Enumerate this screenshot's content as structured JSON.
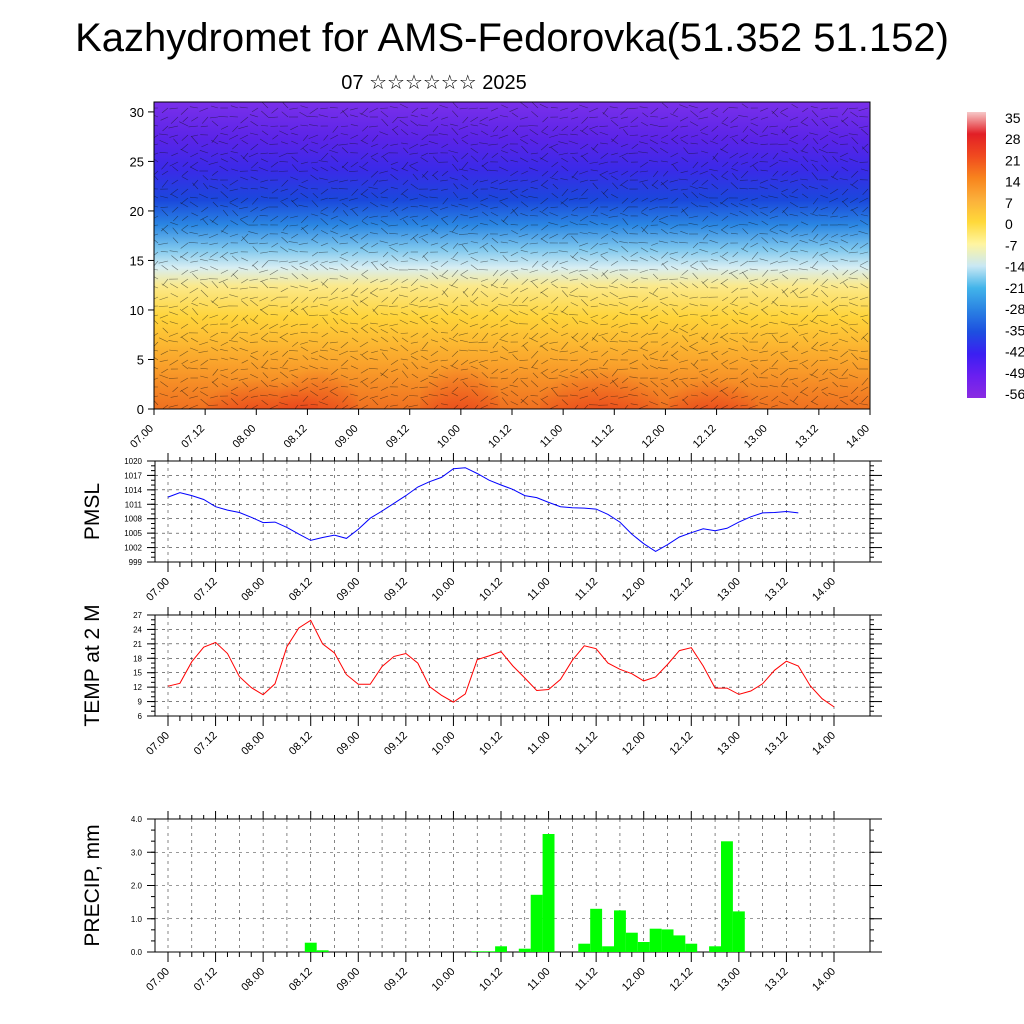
{
  "title": "Kazhydromet for AMS-Fedorovka(51.352 51.152)",
  "subtitle": "07 ☆☆☆☆☆☆ 2025",
  "time_labels": [
    "07.00",
    "07.12",
    "08.00",
    "08.12",
    "09.00",
    "09.12",
    "10.00",
    "10.12",
    "11.00",
    "11.12",
    "12.00",
    "12.12",
    "13.00",
    "13.12",
    "14.00"
  ],
  "colorbar": {
    "labels": [
      "35",
      "28",
      "21",
      "14",
      "7",
      "0",
      "-7",
      "-14",
      "-21",
      "-28",
      "-35",
      "-42",
      "-49",
      "-56"
    ],
    "colors": [
      "#f6c8c8",
      "#e21f26",
      "#f04a1f",
      "#f8841d",
      "#fbb03b",
      "#ffd93a",
      "#fff5a0",
      "#c9e8f4",
      "#42b4ea",
      "#2a82e3",
      "#1d4fe0",
      "#3b1ff2",
      "#6a1ff0",
      "#8a2be2"
    ]
  },
  "chart_data": [
    {
      "type": "heatmap",
      "name": "cross-section",
      "ylabel": "",
      "ylim": [
        0,
        31
      ],
      "yticks": [
        "0",
        "5",
        "10",
        "15",
        "20",
        "25",
        "30"
      ],
      "x": [
        "07.00",
        "07.12",
        "08.00",
        "08.12",
        "09.00",
        "09.12",
        "10.00",
        "10.12",
        "11.00",
        "11.12",
        "12.00",
        "12.12",
        "13.00",
        "13.12",
        "14.00"
      ],
      "description_levels": "temperature shading with wind barbs"
    },
    {
      "type": "line",
      "ylabel": "PMSL",
      "ylim": [
        999,
        1020
      ],
      "yticks": [
        "999",
        "1002",
        "1005",
        "1008",
        "1011",
        "1014",
        "1017",
        "1020"
      ],
      "color": "#0000ff",
      "x_start": 0,
      "x_step": 0.125,
      "values": [
        1012.5,
        1013.4,
        1012.8,
        1012.0,
        1010.5,
        1009.8,
        1009.3,
        1008.3,
        1007.2,
        1007.3,
        1006.2,
        1004.8,
        1003.5,
        1004.1,
        1004.6,
        1003.9,
        1005.8,
        1008.1,
        1009.6,
        1011.2,
        1012.8,
        1014.6,
        1015.7,
        1016.6,
        1018.4,
        1018.6,
        1017.4,
        1016.0,
        1015.0,
        1014.1,
        1012.8,
        1012.4,
        1011.4,
        1010.5,
        1010.3,
        1010.2,
        1010.0,
        1008.9,
        1007.3,
        1004.8,
        1002.8,
        1001.2,
        1002.6,
        1004.2,
        1005.1,
        1005.9,
        1005.5,
        1006.0,
        1007.3,
        1008.4,
        1009.2,
        1009.3,
        1009.5,
        1009.2
      ]
    },
    {
      "type": "line",
      "ylabel": "TEMP at 2 M",
      "ylim": [
        6,
        27
      ],
      "yticks": [
        "6",
        "9",
        "12",
        "15",
        "18",
        "21",
        "24",
        "27"
      ],
      "color": "#ff0000",
      "x_start": 0,
      "x_step": 0.125,
      "values": [
        12.2,
        12.8,
        17.3,
        20.3,
        21.3,
        19.0,
        14.2,
        11.9,
        10.4,
        12.7,
        20.4,
        24.3,
        25.9,
        21.0,
        19.1,
        14.6,
        12.6,
        12.6,
        16.3,
        18.4,
        19.0,
        17.0,
        12.1,
        10.3,
        8.9,
        10.6,
        17.7,
        18.5,
        19.4,
        16.4,
        13.9,
        11.3,
        11.5,
        13.6,
        17.6,
        20.6,
        20.0,
        17.0,
        15.7,
        14.8,
        13.3,
        14.1,
        16.7,
        19.6,
        20.2,
        16.4,
        11.8,
        11.8,
        10.5,
        11.2,
        12.7,
        15.5,
        17.4,
        16.4,
        12.3,
        9.6,
        7.9
      ]
    },
    {
      "type": "bar",
      "ylabel": "PRECIP, mm",
      "ylim": [
        0,
        4
      ],
      "yticks": [
        "0.0",
        "1.0",
        "2.0",
        "3.0",
        "4.0"
      ],
      "color": "#00ff00",
      "x_start": 0,
      "x_step": 0.125,
      "values": [
        0,
        0,
        0,
        0,
        0,
        0,
        0,
        0,
        0,
        0,
        0,
        0,
        0.28,
        0.05,
        0,
        0,
        0,
        0,
        0,
        0,
        0,
        0,
        0,
        0,
        0,
        0,
        0.02,
        0.02,
        0.17,
        0,
        0.1,
        1.72,
        3.55,
        0,
        0,
        0.25,
        1.3,
        0.17,
        1.25,
        0.58,
        0.3,
        0.7,
        0.68,
        0.5,
        0.25,
        0,
        0.17,
        3.33,
        1.22,
        0,
        0,
        0,
        0,
        0,
        0,
        0,
        0
      ]
    }
  ]
}
